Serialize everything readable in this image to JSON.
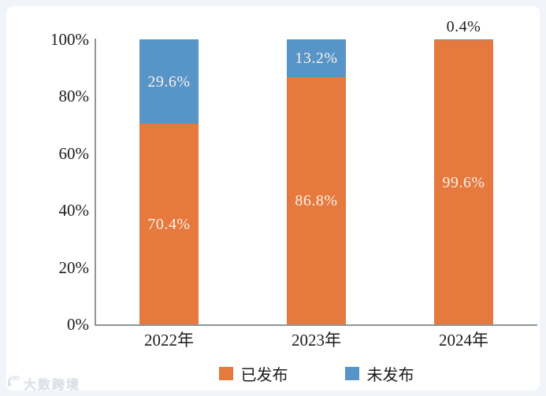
{
  "page": {
    "background_color": "#f1f5fa",
    "card_color": "#ffffff"
  },
  "watermark": {
    "text": "大数跨境"
  },
  "chart_data": {
    "type": "bar",
    "stacked": true,
    "title": "",
    "xlabel": "",
    "ylabel": "",
    "categories": [
      "2022年",
      "2023年",
      "2024年"
    ],
    "series": [
      {
        "name": "已发布",
        "color": "#e5793e",
        "values": [
          70.4,
          86.8,
          99.6
        ]
      },
      {
        "name": "未发布",
        "color": "#5794c8",
        "values": [
          29.6,
          13.2,
          0.4
        ]
      }
    ],
    "ylim": [
      0,
      100
    ],
    "yticks": [
      {
        "value": 0,
        "label": "0%"
      },
      {
        "value": 20,
        "label": "20%"
      },
      {
        "value": 40,
        "label": "40%"
      },
      {
        "value": 60,
        "label": "60%"
      },
      {
        "value": 80,
        "label": "80%"
      },
      {
        "value": 100,
        "label": "100%"
      }
    ],
    "value_suffix": "%",
    "grid": false,
    "legend_position": "bottom",
    "axis_color": "#8f9598",
    "inside_label_color": "#f7f2e8",
    "outside_label_color": "#1c1c1c"
  }
}
